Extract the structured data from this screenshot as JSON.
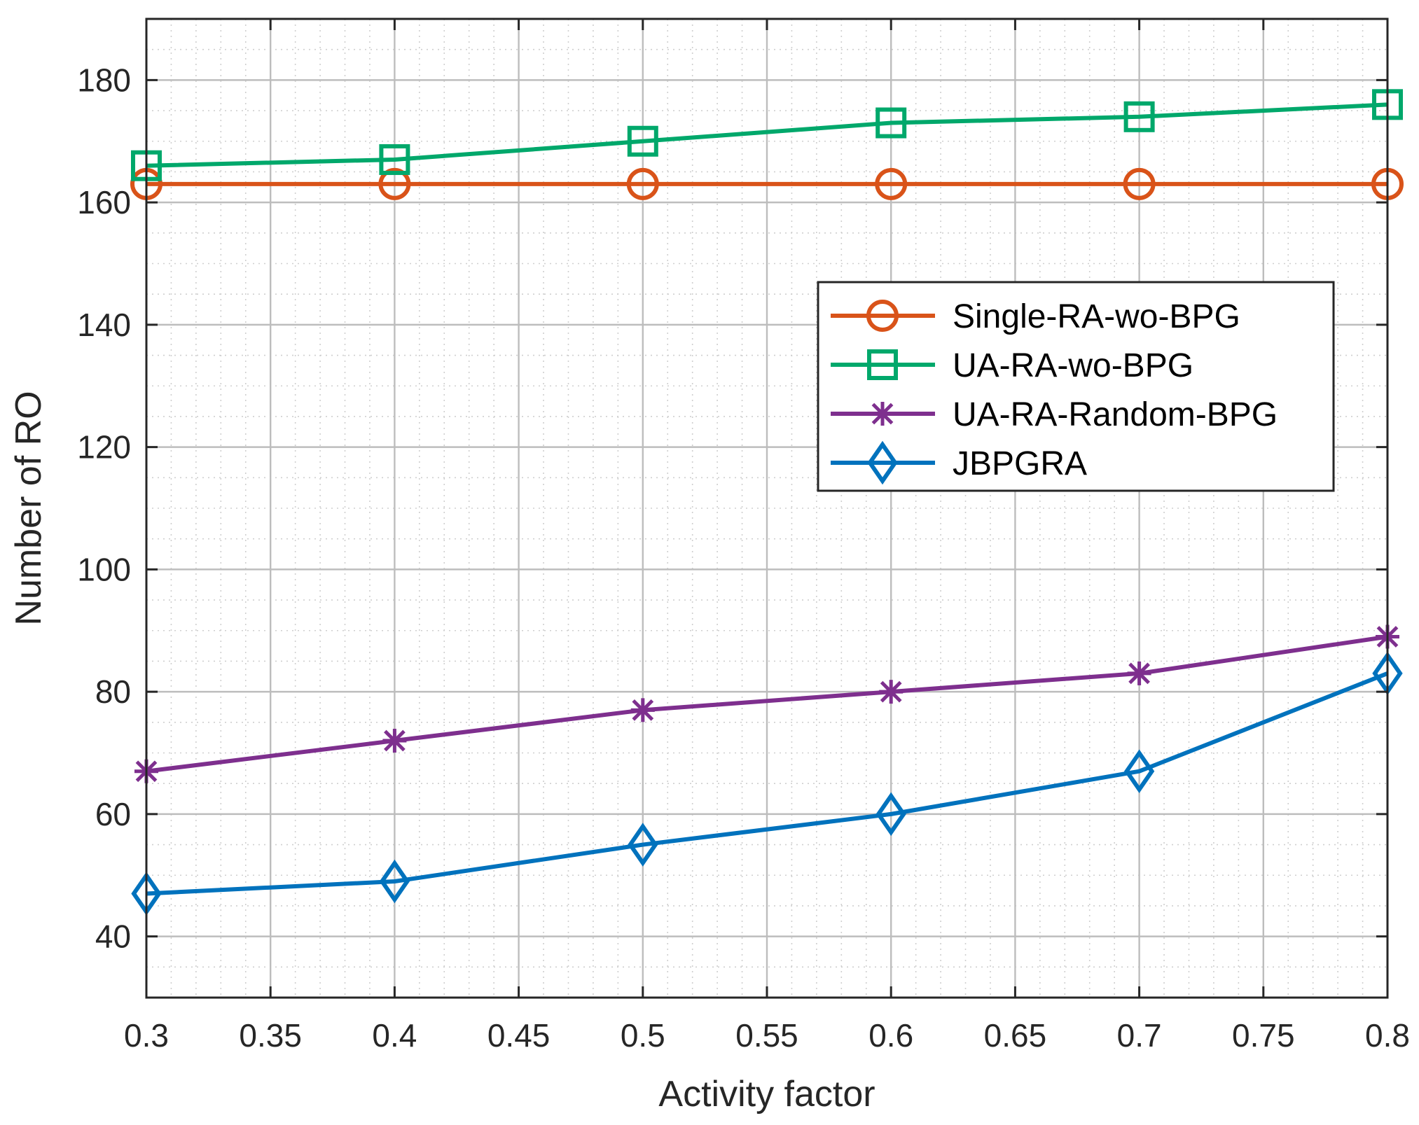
{
  "chart_data": {
    "type": "line",
    "title": "",
    "xlabel": "Activity factor",
    "ylabel": "Number of RO",
    "xlim": [
      0.3,
      0.8
    ],
    "ylim": [
      30,
      190
    ],
    "x": [
      0.3,
      0.4,
      0.5,
      0.6,
      0.7,
      0.8
    ],
    "x_ticks": [
      0.3,
      0.35,
      0.4,
      0.45,
      0.5,
      0.55,
      0.6,
      0.65,
      0.7,
      0.75,
      0.8
    ],
    "x_tick_labels": [
      "0.3",
      "0.35",
      "0.4",
      "0.45",
      "0.5",
      "0.55",
      "0.6",
      "0.65",
      "0.7",
      "0.75",
      "0.8"
    ],
    "y_ticks": [
      40,
      60,
      80,
      100,
      120,
      140,
      160,
      180
    ],
    "y_tick_labels": [
      "40",
      "60",
      "80",
      "100",
      "120",
      "140",
      "160",
      "180"
    ],
    "grid": true,
    "minor_grid": true,
    "legend_position": "right-middle",
    "series": [
      {
        "name": "Single-RA-wo-BPG",
        "marker": "circle",
        "color": "#D95319",
        "values": [
          163,
          163,
          163,
          163,
          163,
          163
        ]
      },
      {
        "name": "UA-RA-wo-BPG",
        "marker": "square",
        "color": "#00A86B",
        "values": [
          166,
          167,
          170,
          173,
          174,
          176
        ]
      },
      {
        "name": "UA-RA-Random-BPG",
        "marker": "asterisk",
        "color": "#7E2F8E",
        "values": [
          67,
          72,
          77,
          80,
          83,
          89
        ]
      },
      {
        "name": "JBPGRA",
        "marker": "diamond",
        "color": "#0072BD",
        "values": [
          47,
          49,
          55,
          60,
          67,
          83
        ]
      }
    ]
  }
}
